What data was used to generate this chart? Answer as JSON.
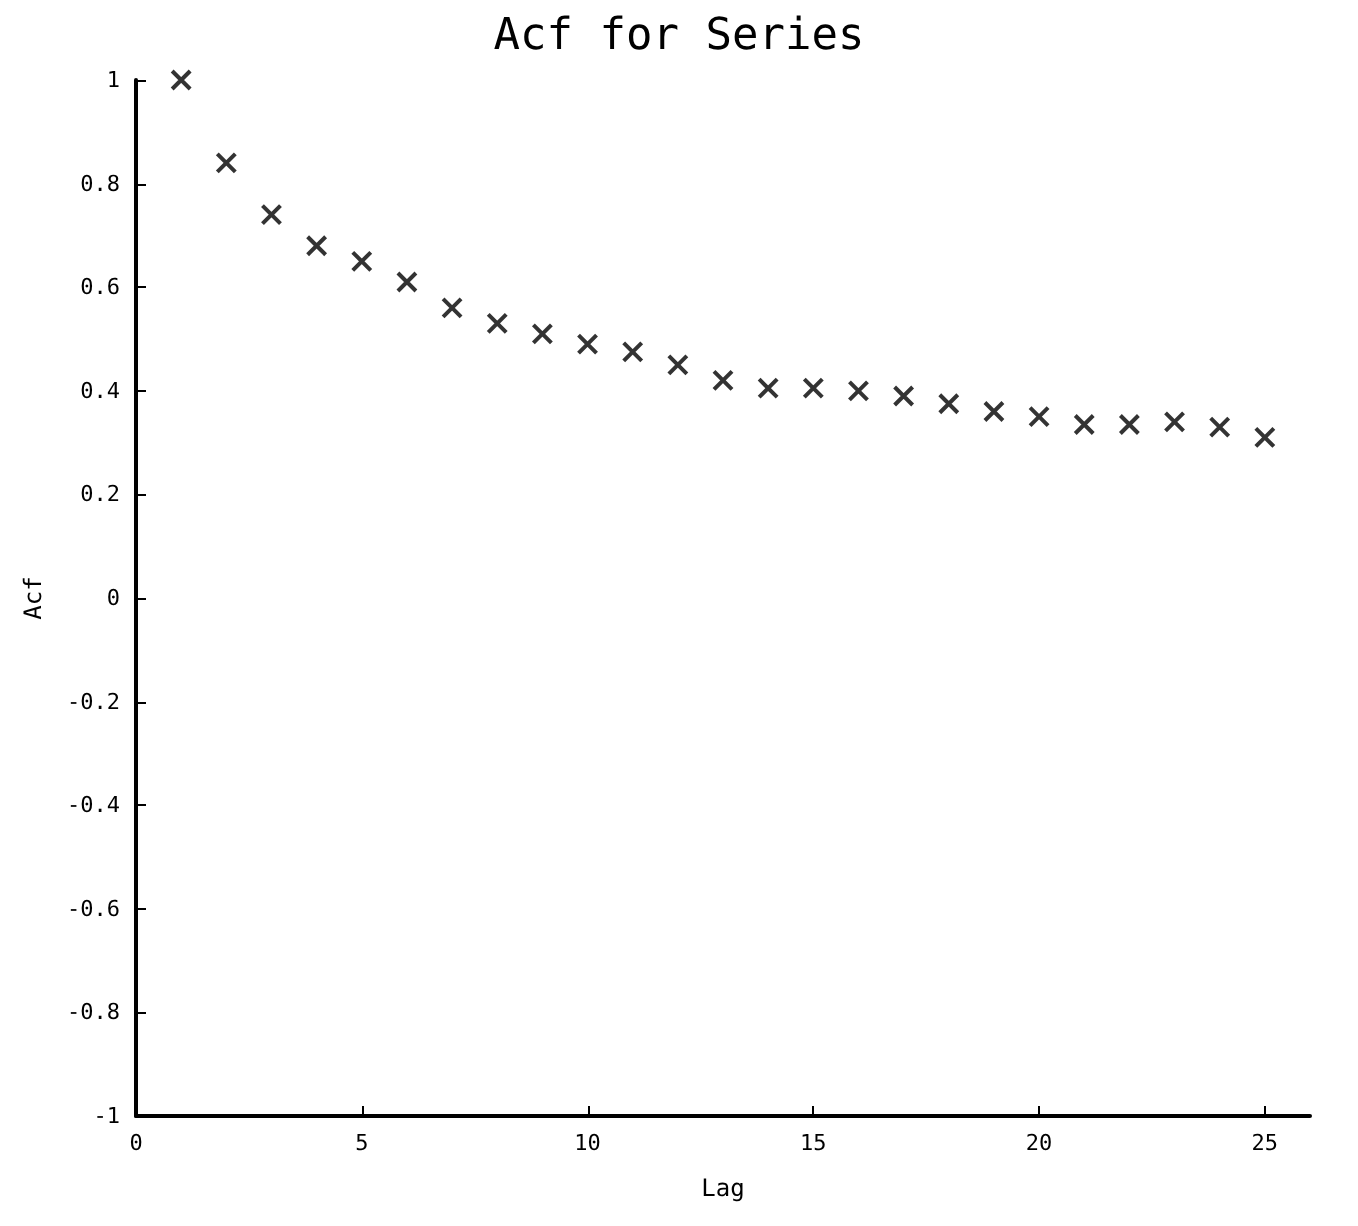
{
  "chart_data": {
    "type": "scatter",
    "title": "Acf for Series",
    "xlabel": "Lag",
    "ylabel": "Acf",
    "x": [
      1,
      2,
      3,
      4,
      5,
      6,
      7,
      8,
      9,
      10,
      11,
      12,
      13,
      14,
      15,
      16,
      17,
      18,
      19,
      20,
      21,
      22,
      23,
      24,
      25
    ],
    "values": [
      1,
      0.84,
      0.74,
      0.68,
      0.65,
      0.61,
      0.56,
      0.53,
      0.51,
      0.49,
      0.475,
      0.45,
      0.42,
      0.405,
      0.405,
      0.4,
      0.39,
      0.375,
      0.36,
      0.35,
      0.335,
      0.335,
      0.34,
      0.33,
      0.31
    ],
    "color": "#000000",
    "marker": "cross",
    "grid": false,
    "xlim": [
      0,
      26
    ],
    "xticks": [
      0,
      5,
      10,
      15,
      20,
      25
    ],
    "ylim": [
      -1,
      1
    ],
    "yticks": [
      -1,
      -0.8,
      -0.6,
      -0.4,
      -0.2,
      0,
      0.2,
      0.4,
      0.6,
      0.8,
      1
    ]
  }
}
